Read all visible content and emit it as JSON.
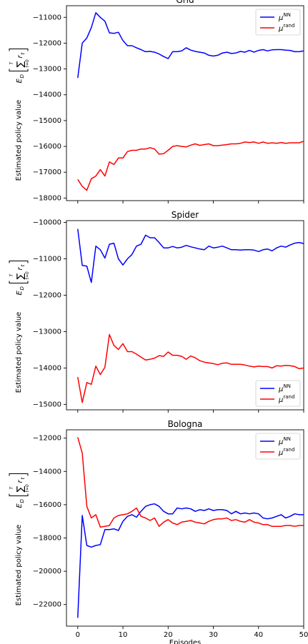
{
  "chart_data": [
    {
      "type": "line",
      "title": "Grid",
      "xlabel": "",
      "ylabel": "Estimated policy value",
      "xlim": [
        -2.5,
        50
      ],
      "ylim": [
        -18100,
        -10550
      ],
      "xticks": [
        0,
        10,
        20,
        30,
        40,
        50
      ],
      "show_xtick_labels": false,
      "yticks": [
        -18000,
        -17000,
        -16000,
        -15000,
        -14000,
        -13000,
        -12000,
        -11000
      ],
      "ytick_labels": [
        "−18000",
        "−17000",
        "−16000",
        "−15000",
        "−14000",
        "−13000",
        "−12000",
        "−11000"
      ],
      "grid": false,
      "legend_position": "top-right",
      "series": [
        {
          "name": "μ^NN",
          "color": "#0000ff",
          "x": [
            0,
            1,
            2,
            3,
            4,
            5,
            6,
            7,
            8,
            9,
            10,
            11,
            12,
            13,
            14,
            15,
            16,
            17,
            18,
            19,
            20,
            21,
            22,
            23,
            24,
            25,
            26,
            27,
            28,
            29,
            30,
            31,
            32,
            33,
            34,
            35,
            36,
            37,
            38,
            39,
            40,
            41,
            42,
            43,
            44,
            45,
            46,
            47,
            48,
            49,
            50
          ],
          "values": [
            -13350,
            -12000,
            -11800,
            -11400,
            -10820,
            -11000,
            -11150,
            -11600,
            -11620,
            -11580,
            -11900,
            -12100,
            -12100,
            -12180,
            -12250,
            -12330,
            -12320,
            -12350,
            -12420,
            -12520,
            -12600,
            -12330,
            -12330,
            -12300,
            -12180,
            -12270,
            -12320,
            -12350,
            -12380,
            -12470,
            -12500,
            -12470,
            -12380,
            -12350,
            -12400,
            -12380,
            -12320,
            -12350,
            -12280,
            -12350,
            -12280,
            -12250,
            -12300,
            -12260,
            -12250,
            -12250,
            -12270,
            -12280,
            -12330,
            -12330,
            -12300
          ]
        },
        {
          "name": "μ^rand",
          "color": "#ff0000",
          "x": [
            0,
            1,
            2,
            3,
            4,
            5,
            6,
            7,
            8,
            9,
            10,
            11,
            12,
            13,
            14,
            15,
            16,
            17,
            18,
            19,
            20,
            21,
            22,
            23,
            24,
            25,
            26,
            27,
            28,
            29,
            30,
            31,
            32,
            33,
            34,
            35,
            36,
            37,
            38,
            39,
            40,
            41,
            42,
            43,
            44,
            45,
            46,
            47,
            48,
            49,
            50
          ],
          "values": [
            -17280,
            -17550,
            -17700,
            -17250,
            -17150,
            -16900,
            -17150,
            -16600,
            -16700,
            -16450,
            -16450,
            -16200,
            -16150,
            -16150,
            -16100,
            -16100,
            -16050,
            -16100,
            -16300,
            -16280,
            -16150,
            -16000,
            -15970,
            -16000,
            -16020,
            -15950,
            -15900,
            -15960,
            -15930,
            -15900,
            -15970,
            -15970,
            -15950,
            -15930,
            -15900,
            -15900,
            -15880,
            -15830,
            -15850,
            -15830,
            -15880,
            -15830,
            -15880,
            -15860,
            -15880,
            -15850,
            -15880,
            -15860,
            -15860,
            -15860,
            -15800
          ]
        }
      ]
    },
    {
      "type": "line",
      "title": "Spider",
      "xlabel": "",
      "ylabel": "Estimated policy value",
      "xlim": [
        -2.5,
        50
      ],
      "ylim": [
        -15150,
        -9950
      ],
      "xticks": [
        0,
        10,
        20,
        30,
        40,
        50
      ],
      "show_xtick_labels": false,
      "yticks": [
        -15000,
        -14000,
        -13000,
        -12000,
        -11000,
        -10000
      ],
      "ytick_labels": [
        "−15000",
        "−14000",
        "−13000",
        "−12000",
        "−11000",
        "−10000"
      ],
      "grid": false,
      "legend_position": "bottom-right",
      "series": [
        {
          "name": "μ^NN",
          "color": "#0000ff",
          "x": [
            0,
            1,
            2,
            3,
            4,
            5,
            6,
            7,
            8,
            9,
            10,
            11,
            12,
            13,
            14,
            15,
            16,
            17,
            18,
            19,
            20,
            21,
            22,
            23,
            24,
            25,
            26,
            27,
            28,
            29,
            30,
            31,
            32,
            33,
            34,
            35,
            36,
            37,
            38,
            39,
            40,
            41,
            42,
            43,
            44,
            45,
            46,
            47,
            48,
            49,
            50
          ],
          "values": [
            -10180,
            -11180,
            -11200,
            -11650,
            -10650,
            -10750,
            -10980,
            -10600,
            -10570,
            -11000,
            -11170,
            -11000,
            -10880,
            -10650,
            -10600,
            -10350,
            -10420,
            -10420,
            -10550,
            -10700,
            -10700,
            -10660,
            -10700,
            -10680,
            -10630,
            -10670,
            -10700,
            -10730,
            -10750,
            -10650,
            -10700,
            -10680,
            -10650,
            -10700,
            -10750,
            -10750,
            -10760,
            -10750,
            -10750,
            -10760,
            -10800,
            -10750,
            -10730,
            -10780,
            -10700,
            -10650,
            -10680,
            -10620,
            -10570,
            -10550,
            -10580
          ]
        },
        {
          "name": "μ^rand",
          "color": "#ff0000",
          "x": [
            0,
            1,
            2,
            3,
            4,
            5,
            6,
            7,
            8,
            9,
            10,
            11,
            12,
            13,
            14,
            15,
            16,
            17,
            18,
            19,
            20,
            21,
            22,
            23,
            24,
            25,
            26,
            27,
            28,
            29,
            30,
            31,
            32,
            33,
            34,
            35,
            36,
            37,
            38,
            39,
            40,
            41,
            42,
            43,
            44,
            45,
            46,
            47,
            48,
            49,
            50
          ],
          "values": [
            -14250,
            -14950,
            -14400,
            -14450,
            -13950,
            -14180,
            -13980,
            -13080,
            -13380,
            -13490,
            -13330,
            -13550,
            -13550,
            -13620,
            -13700,
            -13780,
            -13760,
            -13730,
            -13660,
            -13680,
            -13560,
            -13650,
            -13650,
            -13680,
            -13760,
            -13670,
            -13720,
            -13800,
            -13840,
            -13860,
            -13880,
            -13910,
            -13870,
            -13860,
            -13900,
            -13900,
            -13900,
            -13920,
            -13950,
            -13970,
            -13950,
            -13960,
            -13960,
            -14000,
            -13940,
            -13950,
            -13930,
            -13940,
            -13960,
            -14020,
            -14000
          ]
        }
      ]
    },
    {
      "type": "line",
      "title": "Bologna",
      "xlabel": "Episodes",
      "ylabel": "Estimated policy value",
      "xlim": [
        -2.5,
        50
      ],
      "ylim": [
        -23300,
        -11500
      ],
      "xticks": [
        0,
        10,
        20,
        30,
        40,
        50
      ],
      "xtick_labels": [
        "0",
        "10",
        "20",
        "30",
        "40",
        "50"
      ],
      "show_xtick_labels": true,
      "yticks": [
        -22000,
        -20000,
        -18000,
        -16000,
        -14000,
        -12000
      ],
      "ytick_labels": [
        "−22000",
        "−20000",
        "−18000",
        "−16000",
        "−14000",
        "−12000"
      ],
      "grid": false,
      "legend_position": "top-right",
      "series": [
        {
          "name": "μ^NN",
          "color": "#0000ff",
          "x": [
            0,
            1,
            2,
            3,
            4,
            5,
            6,
            7,
            8,
            9,
            10,
            11,
            12,
            13,
            14,
            15,
            16,
            17,
            18,
            19,
            20,
            21,
            22,
            23,
            24,
            25,
            26,
            27,
            28,
            29,
            30,
            31,
            32,
            33,
            34,
            35,
            36,
            37,
            38,
            39,
            40,
            41,
            42,
            43,
            44,
            45,
            46,
            47,
            48,
            49,
            50
          ],
          "values": [
            -22800,
            -16650,
            -18450,
            -18550,
            -18450,
            -18400,
            -17500,
            -17500,
            -17450,
            -17550,
            -17000,
            -16700,
            -16600,
            -16750,
            -16400,
            -16100,
            -16000,
            -15950,
            -16100,
            -16400,
            -16550,
            -16550,
            -16200,
            -16250,
            -16200,
            -16250,
            -16400,
            -16300,
            -16350,
            -16250,
            -16350,
            -16300,
            -16300,
            -16350,
            -16550,
            -16400,
            -16550,
            -16500,
            -16550,
            -16500,
            -16550,
            -16800,
            -16850,
            -16800,
            -16700,
            -16600,
            -16800,
            -16700,
            -16550,
            -16600,
            -16600
          ]
        },
        {
          "name": "μ^rand",
          "color": "#ff0000",
          "x": [
            0,
            1,
            2,
            3,
            4,
            5,
            6,
            7,
            8,
            9,
            10,
            11,
            12,
            13,
            14,
            15,
            16,
            17,
            18,
            19,
            20,
            21,
            22,
            23,
            24,
            25,
            26,
            27,
            28,
            29,
            30,
            31,
            32,
            33,
            34,
            35,
            36,
            37,
            38,
            39,
            40,
            41,
            42,
            43,
            44,
            45,
            46,
            47,
            48,
            49,
            50
          ],
          "values": [
            -11950,
            -12900,
            -16100,
            -16800,
            -16600,
            -17350,
            -17300,
            -17250,
            -16800,
            -16650,
            -16600,
            -16550,
            -16400,
            -16200,
            -16700,
            -16800,
            -16950,
            -16800,
            -17300,
            -17050,
            -16900,
            -17100,
            -17200,
            -17050,
            -17000,
            -16950,
            -17050,
            -17100,
            -17150,
            -17000,
            -16900,
            -16850,
            -16850,
            -16800,
            -16950,
            -16900,
            -17000,
            -17050,
            -16900,
            -17050,
            -17100,
            -17200,
            -17200,
            -17300,
            -17300,
            -17300,
            -17250,
            -17250,
            -17300,
            -17250,
            -17250
          ]
        }
      ]
    }
  ]
}
